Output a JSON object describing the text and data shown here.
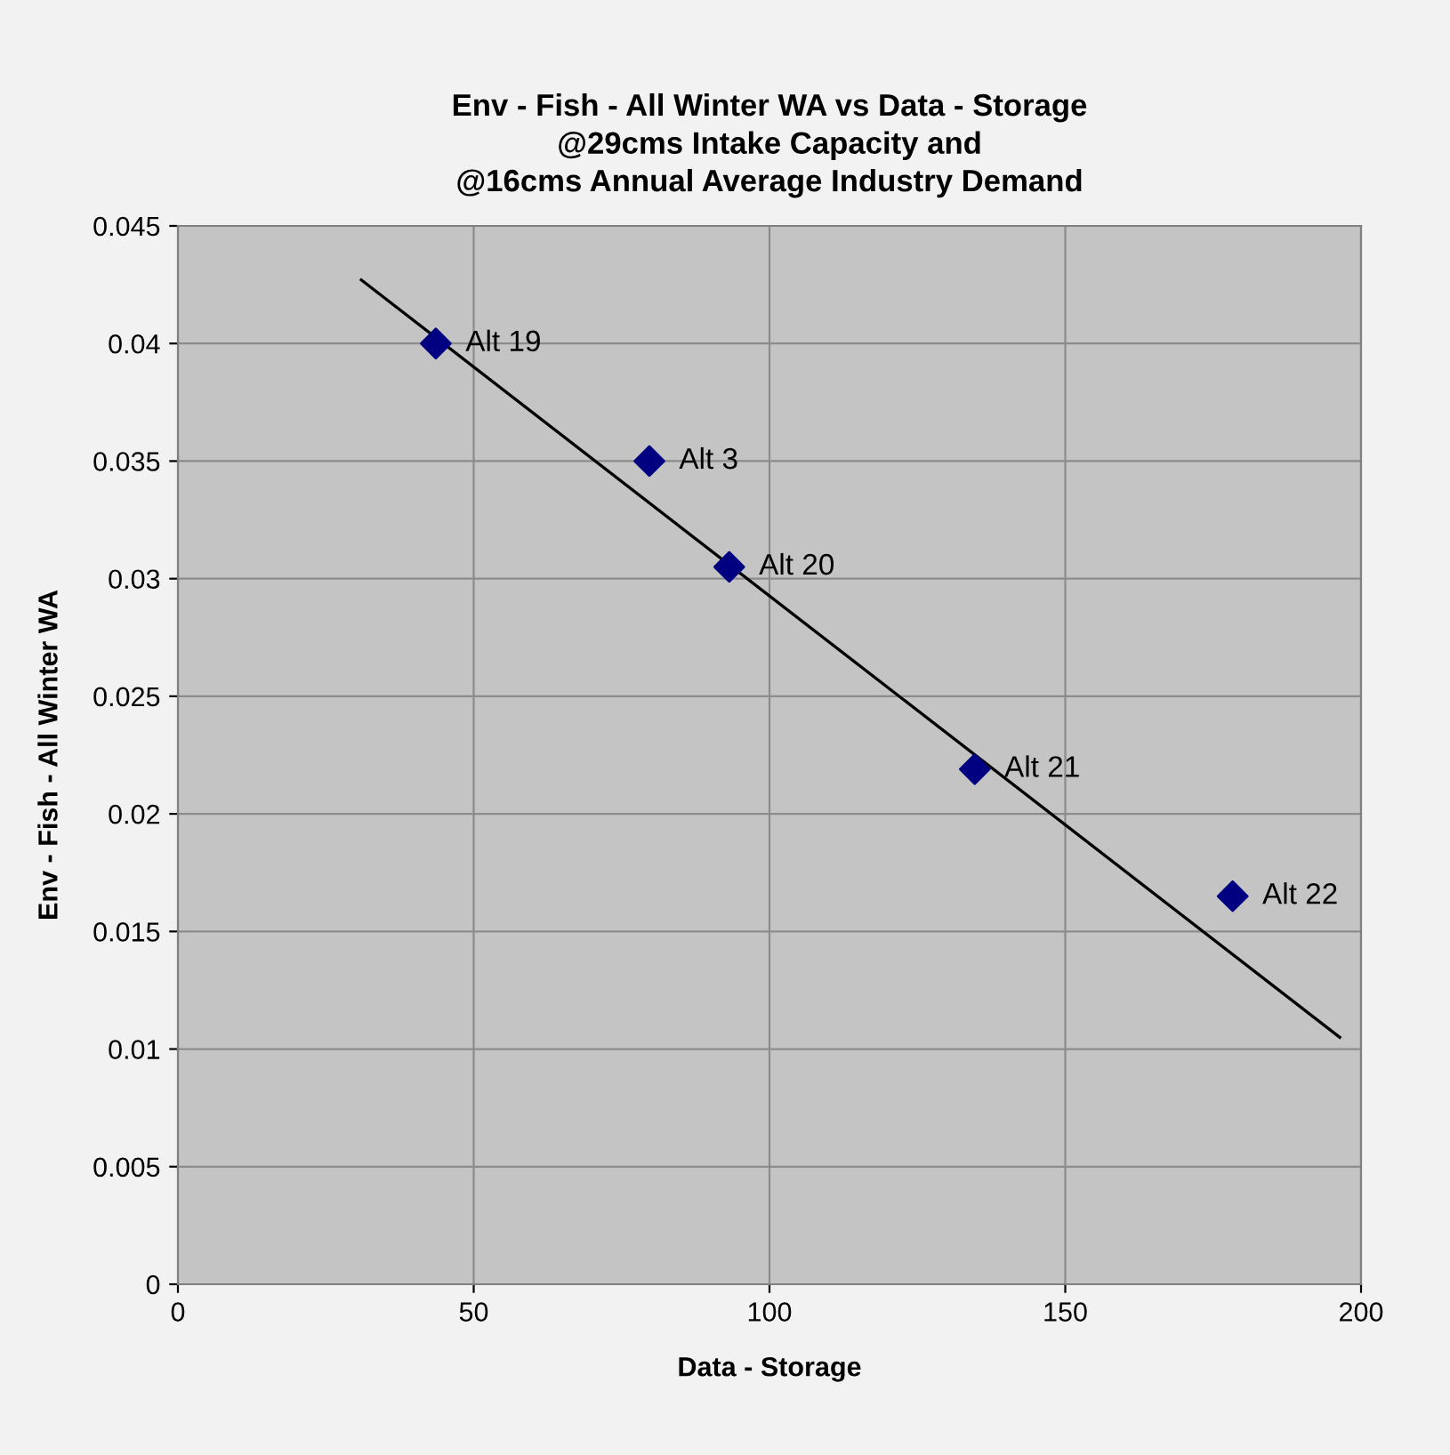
{
  "chart_data": {
    "type": "scatter",
    "title": "Env - Fish - All Winter WA vs Data - Storage\n@29cms Intake Capacity and\n@16cms Annual Average Industry Demand",
    "xlabel": "Data - Storage",
    "ylabel": "Env - Fish - All Winter WA",
    "series": [
      {
        "color": "#000080",
        "marker": "diamond",
        "x": [
          43.6,
          79.7,
          93.2,
          134.7,
          178.3
        ],
        "values": [
          0.04,
          0.035,
          0.0305,
          0.0219,
          0.0165
        ],
        "value_labels": [
          "Alt 19",
          "Alt 3",
          "Alt 20",
          "Alt 21",
          "Alt 22"
        ]
      },
      {
        "type": "line",
        "color": "#000000",
        "marker": "none",
        "x": [
          31,
          196.4
        ],
        "values": [
          0.0427,
          0.0105
        ]
      }
    ],
    "xlim": [
      0,
      200
    ],
    "xticks": [
      0,
      50,
      100,
      150,
      200
    ],
    "ylim": [
      0,
      0.045
    ],
    "yticks": [
      0,
      0.005,
      0.01,
      0.015,
      0.02,
      0.025,
      0.03,
      0.035,
      0.04,
      0.045
    ],
    "grid": true,
    "legend": false
  }
}
